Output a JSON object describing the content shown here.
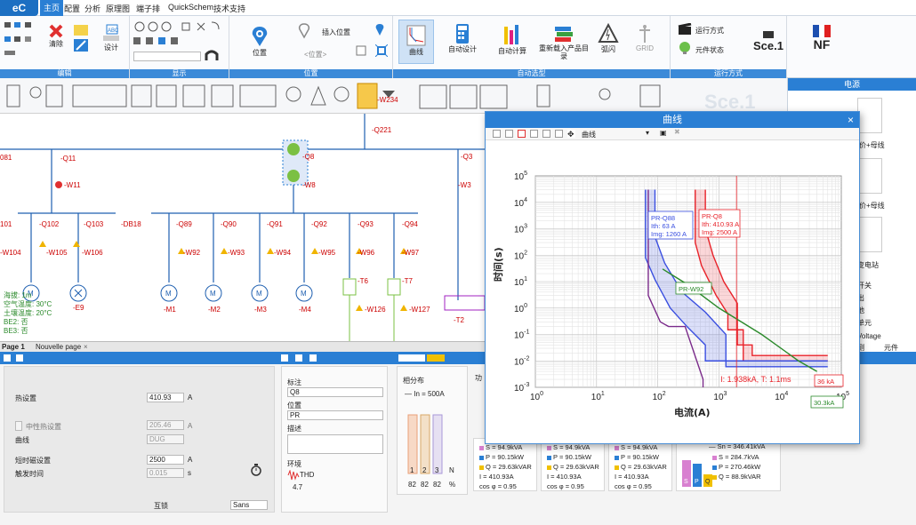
{
  "menu": {
    "logo": "eC",
    "tabs": [
      "主页",
      "配置",
      "分析",
      "原理图",
      "端子排",
      "QuickSchem",
      "技术支持"
    ],
    "active_tab": "主页"
  },
  "ribbon": {
    "edit_label": "编辑",
    "display_label": "显示",
    "position_label": "位置",
    "auto_label": "自动选型",
    "run_label": "运行方式",
    "clear": "清除",
    "design": "设计",
    "position": "位置",
    "insert_position": "插入位置",
    "position_placeholder": "<位置>",
    "curve": "曲线",
    "auto_design": "自动设计",
    "auto_calc": "自动计算",
    "reload_catalog": "重新载入产品目录",
    "flash": "弧闪",
    "grid": "GRID",
    "run_mode": "运行方式",
    "component_state": "元件状态",
    "sce": "Sce.1",
    "nf": "NF"
  },
  "right_panel": {
    "header": "电源",
    "items": [
      "电价+母线",
      "电价+母线",
      "变电站",
      "开关",
      "出",
      "他",
      "单元",
      "Voltage",
      "测",
      "元件"
    ]
  },
  "schematic": {
    "labels": [
      "-Q11",
      "-W11",
      "-Q102",
      "-Q103",
      "-W105",
      "-W106",
      "-W104",
      "-E9",
      "-Q8",
      "-W8",
      "-Q3",
      "-W3",
      "-Q89",
      "-Q90",
      "-Q91",
      "-Q92",
      "-Q93",
      "-Q94",
      "-W92",
      "-W93",
      "-W94",
      "-W95",
      "-W96",
      "-W97",
      "-M1",
      "-M2",
      "-M3",
      "-M4",
      "-T6",
      "-T7",
      "-W126",
      "-W127",
      "-T2",
      "-W234",
      "-Q221",
      "-DB18",
      "081",
      "101"
    ],
    "env_lines": [
      "海拔: 1m",
      "空气温度: 30°C",
      "土壤温度: 20°C",
      "BE2: 否",
      "BE3: 否"
    ]
  },
  "page_tabs": [
    "Page 1",
    "Nouvelle page"
  ],
  "dialog": {
    "title": "曲线",
    "dropdown": "曲线",
    "close_icon": "close-icon",
    "chart_data": {
      "type": "line",
      "title": "",
      "xlabel": "电流(A)",
      "ylabel": "时间(s)",
      "xscale": "log",
      "yscale": "log",
      "xlim": [
        1,
        100000
      ],
      "ylim": [
        0.001,
        100000
      ],
      "xticks": [
        "10^0",
        "10^1",
        "10^2",
        "10^3",
        "10^4",
        "10^5"
      ],
      "yticks": [
        "10^-3",
        "10^-2",
        "10^-1",
        "10^0",
        "10^1",
        "10^2",
        "10^3",
        "10^4",
        "10^5"
      ],
      "series": [
        {
          "name": "PR-Q8",
          "color": "#e8232a",
          "x": [
            410,
            410,
            520,
            900,
            1400,
            1400,
            2500,
            2500,
            60000
          ],
          "y": [
            30000,
            300,
            40,
            3,
            0.6,
            0.15,
            0.15,
            0.01,
            0.01
          ]
        },
        {
          "name": "PR-Q8",
          "color": "#e8232a",
          "x": [
            600,
            600,
            800,
            1200,
            2000,
            2000,
            3500,
            3500,
            60000
          ],
          "y": [
            30000,
            1000,
            100,
            10,
            1.5,
            0.04,
            0.04,
            0.016,
            0.016
          ]
        },
        {
          "name": "PR-Q88",
          "color": "#3a4fe0",
          "x": [
            63,
            63,
            90,
            160,
            300,
            600,
            600,
            60000
          ],
          "y": [
            30000,
            80,
            12,
            1,
            0.2,
            0.04,
            0.01,
            0.01
          ]
        },
        {
          "name": "PR-Q88",
          "color": "#3a4fe0",
          "x": [
            90,
            90,
            130,
            250,
            600,
            1300,
            1300,
            60000
          ],
          "y": [
            30000,
            500,
            50,
            4,
            0.7,
            0.1,
            0.006,
            0.006
          ]
        },
        {
          "name": "PR-W92",
          "color": "#2b8a2b",
          "x": [
            120,
            300,
            1000,
            5000,
            20000,
            40000
          ],
          "y": [
            30,
            8,
            1,
            0.1,
            0.01,
            0.004
          ]
        },
        {
          "name": "Q221",
          "color": "#7a2a8a",
          "x": [
            70,
            70,
            110,
            150,
            280,
            550,
            550
          ],
          "y": [
            30000,
            3,
            0.3,
            0.2,
            0.2,
            0.002,
            0.001
          ]
        }
      ],
      "annotations": [
        "PR-Q8",
        "Ith: 410.93 A",
        "Img: 2500 A",
        "PR-Q88",
        "Ith: 63 A",
        "Img: 1260 A",
        "PR-W92",
        "36 kA",
        "30.3kA",
        "I: 1.938kA, T: 1.1ms"
      ]
    }
  },
  "bottom": {
    "thermal_setting": "热设置",
    "thermal_value": "410.93",
    "unit_a": "A",
    "neutral_setting": "中性热设置",
    "neutral_value": "205.46",
    "curve_label": "曲线",
    "curve_value": "DUG",
    "short_setting": "短时磁设置",
    "short_value": "2500",
    "trip_time": "触发时间",
    "trip_value": "0.015",
    "unit_s": "s",
    "interlock": "互锁",
    "interlock_value": "Sans",
    "mark_label": "标注",
    "mark_value": "Q8",
    "position_label": "位置",
    "position_value": "PR",
    "desc_label": "描述",
    "env_label": "环境",
    "thd_label": "THD",
    "thd_value": "4.7",
    "phase_dist": "相分布",
    "in_value": "— In = 500A",
    "phases": [
      "1",
      "2",
      "3",
      "N"
    ],
    "phase_pct": [
      "82",
      "82",
      "82",
      "%"
    ],
    "power_label": "功",
    "cards": [
      {
        "s": "S = 94.9kVA",
        "p": "P = 90.15kW",
        "q": "Q = 29.63kVAR",
        "i": "I = 410.93A",
        "cos": "cos φ = 0.95"
      },
      {
        "s": "S = 94.9kVA",
        "p": "P = 90.15kW",
        "q": "Q = 29.63kVAR",
        "i": "I = 410.93A",
        "cos": "cos φ = 0.95"
      },
      {
        "s": "S = 94.9kVA",
        "p": "P = 90.15kW",
        "q": "Q = 29.63kVAR",
        "i": "I = 410.93A",
        "cos": "cos φ = 0.95"
      }
    ],
    "total": {
      "sn": "— Sn = 346.41kVA",
      "s": "S = 284.7kVA",
      "p": "P = 270.46kW",
      "q": "Q = 88.9kVAR"
    }
  },
  "colors": {
    "accent": "#2a7fd4",
    "warn": "#f0b400",
    "green": "#7bc043"
  }
}
